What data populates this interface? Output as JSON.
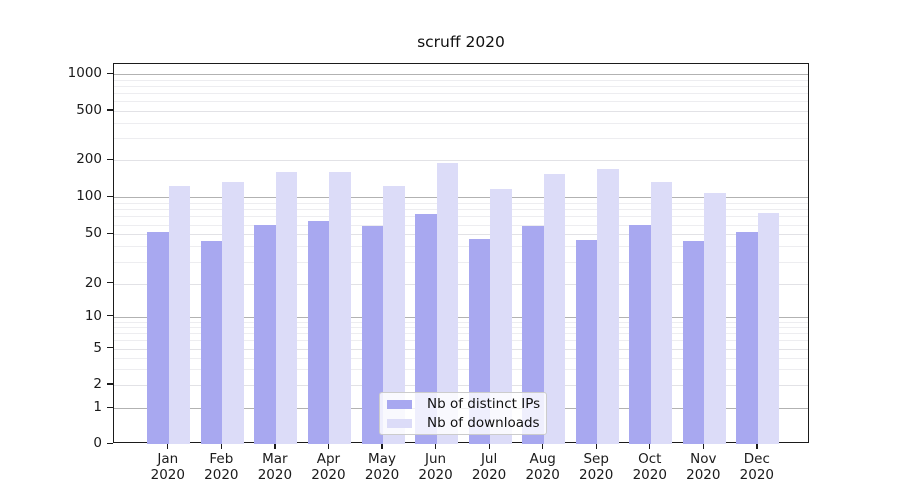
{
  "title": "scruff 2020",
  "chart_data": {
    "type": "bar",
    "title": "scruff 2020",
    "yscale": "symlog",
    "grid": true,
    "ylim": [
      0,
      1200
    ],
    "yticks": [
      0,
      1,
      2,
      5,
      10,
      20,
      50,
      100,
      200,
      500,
      1000
    ],
    "xlabel": "",
    "ylabel": "",
    "categories": [
      "Jan 2020",
      "Feb 2020",
      "Mar 2020",
      "Apr 2020",
      "May 2020",
      "Jun 2020",
      "Jul 2020",
      "Aug 2020",
      "Sep 2020",
      "Oct 2020",
      "Nov 2020",
      "Dec 2020"
    ],
    "series": [
      {
        "name": "Nb of distinct IPs",
        "color": "#a8a8f0",
        "values": [
          52,
          44,
          59,
          64,
          58,
          73,
          46,
          58,
          45,
          60,
          44,
          52
        ]
      },
      {
        "name": "Nb of downloads",
        "color": "#dcdcf8",
        "values": [
          124,
          132,
          161,
          162,
          124,
          190,
          116,
          154,
          170,
          132,
          108,
          75
        ]
      }
    ],
    "legend_position": "lower center"
  },
  "legend": {
    "items": [
      {
        "label": "Nb of distinct IPs",
        "color": "#a8a8f0"
      },
      {
        "label": "Nb of downloads",
        "color": "#dcdcf8"
      }
    ]
  },
  "style": {
    "grid_major_color": "#b2b2b2",
    "grid_minor_color": "#ededf0",
    "axis_color": "#1b1b1b"
  }
}
